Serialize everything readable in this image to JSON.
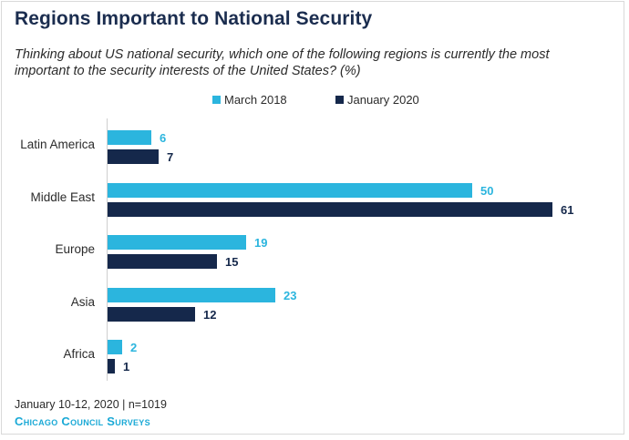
{
  "title": "Regions Important to National Security",
  "subtitle": "Thinking about US national security, which one of the following regions is currently the most important to the security interests of the United States? (%)",
  "footer": {
    "date": "January 10-12, 2020 | n=1019",
    "org": "Chicago Council Surveys"
  },
  "colors": {
    "march_2018": "#2bb5de",
    "january_2020": "#15284b"
  },
  "chart_data": {
    "type": "bar",
    "orientation": "horizontal",
    "categories": [
      "Latin America",
      "Middle East",
      "Europe",
      "Asia",
      "Africa"
    ],
    "series": [
      {
        "name": "March 2018",
        "values": [
          6,
          50,
          19,
          23,
          2
        ]
      },
      {
        "name": "January 2020",
        "values": [
          7,
          61,
          15,
          12,
          1
        ]
      }
    ],
    "title": "Regions Important to National Security",
    "xlabel": "",
    "ylabel": "",
    "xlim": [
      0,
      61
    ],
    "grid": false,
    "legend": "top-center"
  }
}
